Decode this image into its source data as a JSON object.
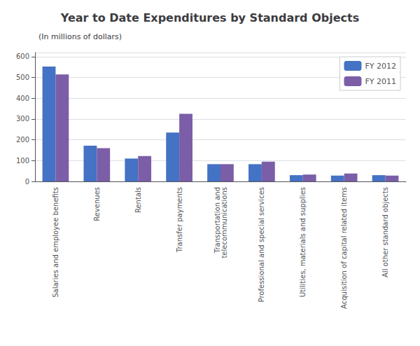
{
  "chart_data": {
    "type": "bar",
    "title": "Year to Date Expenditures by Standard Objects",
    "subtitle": "(In millions of dollars)",
    "categories": [
      "Salaries and employee benefits",
      "Revenues",
      "Rentals",
      "Transfer payments",
      "Transportation and\ntelecommunications",
      "Professional and special services",
      "Utilities, materials and supplies",
      "Acquisition of capital related items",
      "All other standard objects"
    ],
    "series": [
      {
        "name": "FY 2012",
        "color": "#4472C4",
        "values": [
          553,
          172,
          110,
          235,
          83,
          83,
          30,
          28,
          30
        ]
      },
      {
        "name": "FY 2011",
        "color": "#7B5EA7",
        "values": [
          515,
          160,
          122,
          325,
          83,
          95,
          33,
          38,
          28
        ]
      }
    ],
    "ylim": [
      0,
      620
    ],
    "yticks": [
      0,
      100,
      200,
      300,
      400,
      500,
      600
    ],
    "grid": true,
    "legend": "upper right"
  }
}
